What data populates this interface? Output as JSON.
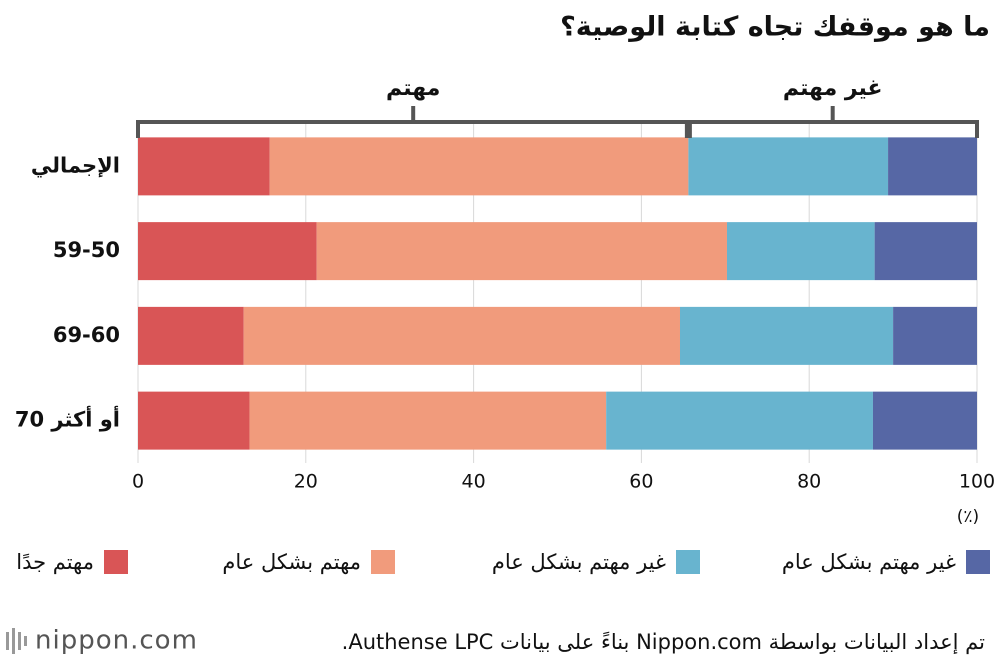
{
  "chart_data": {
    "type": "stacked-barh",
    "title": "ما هو موقفك تجاه كتابة الوصية؟",
    "categories": [
      "الإجمالي",
      "59-50",
      "69-60",
      "70 أو أكثر"
    ],
    "series": [
      {
        "name": "مهتم جدًا",
        "color": "#d95556",
        "values": [
          15.7,
          21.3,
          12.6,
          13.3
        ]
      },
      {
        "name": "مهتم بشكل عام",
        "color": "#f19b7c",
        "values": [
          49.9,
          48.9,
          52.0,
          42.5
        ]
      },
      {
        "name": "غير مهتم بشكل عام",
        "color": "#68b4cf",
        "values": [
          23.8,
          17.6,
          25.4,
          31.8
        ]
      },
      {
        "name": "غير مهتم بشكل عام",
        "color": "#5667a5",
        "values": [
          10.6,
          12.2,
          10.0,
          12.4
        ]
      }
    ],
    "xlim": [
      0,
      100
    ],
    "xticks": [
      0,
      20,
      40,
      60,
      80,
      100
    ],
    "grid": true,
    "unit_label": "(٪)",
    "annotations": [
      "مهتم",
      "غير مهتم"
    ],
    "source": "تم إعداد البيانات بواسطة Nippon.com بناءً على بيانات Authense LPC.",
    "logo": "nippon.com"
  }
}
